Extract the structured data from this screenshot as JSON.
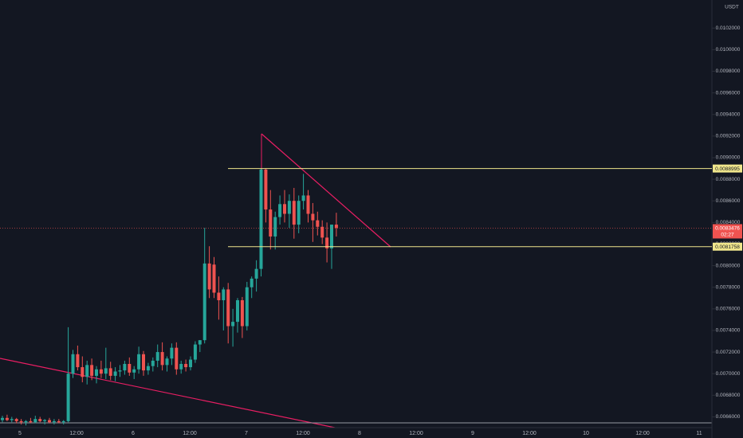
{
  "chart_data": {
    "type": "candlestick",
    "currency": "USDT",
    "ylim": [
      0.0065,
      0.01046
    ],
    "yticks": [
      {
        "value": 0.0066,
        "label": "0.0066000"
      },
      {
        "value": 0.0068,
        "label": "0.0068000"
      },
      {
        "value": 0.007,
        "label": "0.0070000"
      },
      {
        "value": 0.0072,
        "label": "0.0072000"
      },
      {
        "value": 0.0074,
        "label": "0.0074000"
      },
      {
        "value": 0.0076,
        "label": "0.0076000"
      },
      {
        "value": 0.0078,
        "label": "0.0078000"
      },
      {
        "value": 0.008,
        "label": "0.0080000"
      },
      {
        "value": 0.0082,
        "label": "0.0082000"
      },
      {
        "value": 0.0084,
        "label": "0.0084000"
      },
      {
        "value": 0.0086,
        "label": "0.0086000"
      },
      {
        "value": 0.0088,
        "label": "0.0088000"
      },
      {
        "value": 0.009,
        "label": "0.0090000"
      },
      {
        "value": 0.0092,
        "label": "0.0092000"
      },
      {
        "value": 0.0094,
        "label": "0.0094000"
      },
      {
        "value": 0.0096,
        "label": "0.0096000"
      },
      {
        "value": 0.0098,
        "label": "0.0098000"
      },
      {
        "value": 0.01,
        "label": "0.0100000"
      },
      {
        "value": 0.0102,
        "label": "0.0102000"
      }
    ],
    "time_labels": [
      "5",
      "12:00",
      "6",
      "12:00",
      "7",
      "12:00",
      "8",
      "12:00",
      "9",
      "12:00",
      "10",
      "12:00",
      "11"
    ],
    "up_color": "#26a69a",
    "down_color": "#ef5350",
    "levels": [
      {
        "value": 0.0088995,
        "color": "#f0e68c"
      },
      {
        "value": 0.0081758,
        "color": "#f0e68c"
      }
    ],
    "last_price": 0.0083476,
    "countdown": "02:27",
    "open": [
      0.00657,
      0.00659,
      0.00657,
      0.00658,
      0.00656,
      0.00655,
      0.00656,
      0.00655,
      0.00658,
      0.00656,
      0.00657,
      0.00655,
      0.00656,
      0.00655,
      0.00656,
      0.007,
      0.00718,
      0.00706,
      0.00697,
      0.00708,
      0.00698,
      0.00704,
      0.007,
      0.00705,
      0.00698,
      0.00702,
      0.00703,
      0.00709,
      0.00701,
      0.00704,
      0.00718,
      0.00703,
      0.00707,
      0.00712,
      0.0072,
      0.00708,
      0.00714,
      0.00724,
      0.00704,
      0.00709,
      0.00706,
      0.00713,
      0.00727,
      0.00731,
      0.00802,
      0.00801,
      0.00775,
      0.00768,
      0.00778,
      0.00744,
      0.00748,
      0.00768,
      0.00744,
      0.0078,
      0.00788,
      0.00797,
      0.00889,
      0.00852,
      0.00827,
      0.00845,
      0.00857,
      0.00848,
      0.0086,
      0.00838,
      0.0086,
      0.00865,
      0.00848,
      0.00842,
      0.00836,
      0.00826,
      0.00816,
      0.00838
    ],
    "high": [
      0.00661,
      0.00662,
      0.0066,
      0.00659,
      0.00658,
      0.00657,
      0.00659,
      0.00661,
      0.0066,
      0.00658,
      0.00659,
      0.00658,
      0.00658,
      0.00657,
      0.00743,
      0.00722,
      0.00726,
      0.00716,
      0.00712,
      0.00714,
      0.00707,
      0.00712,
      0.00724,
      0.00711,
      0.00706,
      0.00708,
      0.00712,
      0.00715,
      0.00707,
      0.00725,
      0.00721,
      0.0071,
      0.00715,
      0.00727,
      0.00729,
      0.00716,
      0.00728,
      0.00729,
      0.00712,
      0.00713,
      0.00716,
      0.0073,
      0.00731,
      0.00835,
      0.00818,
      0.00808,
      0.0079,
      0.0078,
      0.00784,
      0.0076,
      0.0077,
      0.00771,
      0.00785,
      0.0079,
      0.00805,
      0.0089,
      0.0089,
      0.0087,
      0.0085,
      0.00865,
      0.0087,
      0.00866,
      0.00872,
      0.00865,
      0.00885,
      0.0087,
      0.00858,
      0.0085,
      0.00842,
      0.0084,
      0.00838,
      0.00849
    ],
    "low": [
      0.00655,
      0.00656,
      0.00655,
      0.00654,
      0.00653,
      0.00652,
      0.00654,
      0.00654,
      0.00655,
      0.00653,
      0.00654,
      0.00653,
      0.00654,
      0.00653,
      0.00655,
      0.00696,
      0.00703,
      0.00692,
      0.0069,
      0.00694,
      0.00691,
      0.00696,
      0.00695,
      0.00694,
      0.00693,
      0.00697,
      0.00699,
      0.00698,
      0.00695,
      0.007,
      0.00698,
      0.00699,
      0.00702,
      0.00706,
      0.00703,
      0.00702,
      0.00708,
      0.00699,
      0.007,
      0.00702,
      0.00703,
      0.0071,
      0.0072,
      0.00728,
      0.0077,
      0.0077,
      0.0075,
      0.0074,
      0.00728,
      0.00725,
      0.00738,
      0.00733,
      0.0074,
      0.0077,
      0.00776,
      0.0079,
      0.0084,
      0.00815,
      0.00815,
      0.00838,
      0.0084,
      0.00835,
      0.00825,
      0.0083,
      0.00852,
      0.0084,
      0.00822,
      0.00828,
      0.0082,
      0.00803,
      0.00797,
      0.00827
    ],
    "close": [
      0.00659,
      0.00657,
      0.00658,
      0.00656,
      0.00655,
      0.00656,
      0.00655,
      0.00658,
      0.00656,
      0.00657,
      0.00655,
      0.00656,
      0.00655,
      0.00656,
      0.007,
      0.00718,
      0.00706,
      0.00697,
      0.00708,
      0.00698,
      0.00704,
      0.007,
      0.00705,
      0.00698,
      0.00702,
      0.00703,
      0.00709,
      0.00701,
      0.00704,
      0.00718,
      0.00703,
      0.00707,
      0.00712,
      0.0072,
      0.00708,
      0.00714,
      0.00724,
      0.00704,
      0.00709,
      0.00706,
      0.00713,
      0.00727,
      0.00731,
      0.00802,
      0.00778,
      0.00775,
      0.00768,
      0.00778,
      0.00744,
      0.00748,
      0.00768,
      0.00744,
      0.0078,
      0.00788,
      0.00797,
      0.00889,
      0.00852,
      0.00827,
      0.00845,
      0.00857,
      0.00848,
      0.0086,
      0.00838,
      0.0086,
      0.00865,
      0.00848,
      0.00842,
      0.00836,
      0.00826,
      0.00816,
      0.00838,
      0.00835
    ]
  }
}
